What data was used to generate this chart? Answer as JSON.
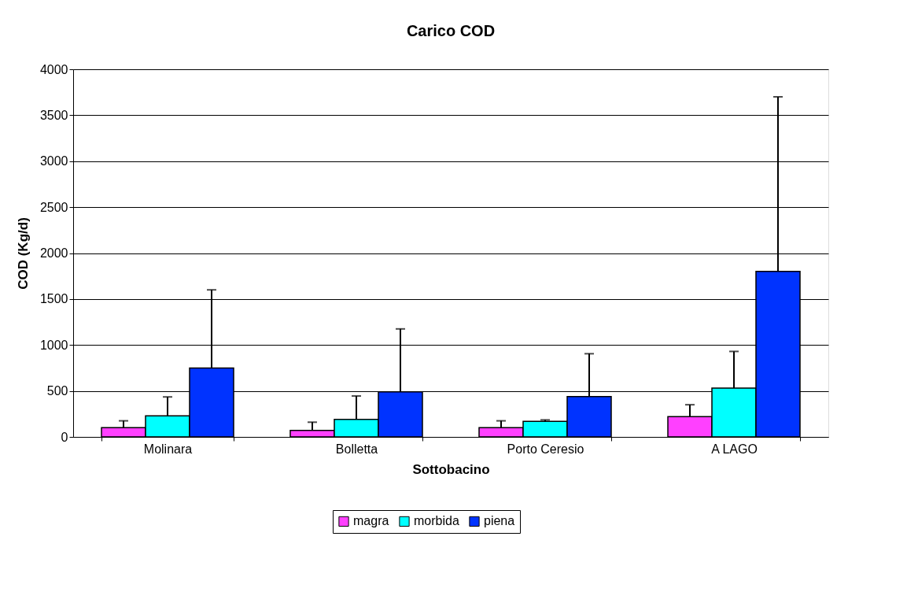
{
  "chart_data": {
    "type": "bar",
    "title": "Carico COD",
    "xlabel": "Sottobacino",
    "ylabel": "COD (Kg/d)",
    "categories": [
      "Molinara",
      "Bolletta",
      "Porto Ceresio",
      "A LAGO"
    ],
    "series": [
      {
        "name": "magra",
        "color": "#ff40ff",
        "values": [
          100,
          70,
          100,
          220
        ],
        "errors": [
          [
            100,
            175
          ],
          [
            70,
            160
          ],
          [
            100,
            175
          ],
          [
            220,
            350
          ]
        ]
      },
      {
        "name": "morbida",
        "color": "#00ffff",
        "values": [
          230,
          190,
          170,
          530
        ],
        "errors": [
          [
            230,
            435
          ],
          [
            190,
            445
          ],
          [
            170,
            185
          ],
          [
            530,
            930
          ]
        ]
      },
      {
        "name": "piena",
        "color": "#0033ff",
        "values": [
          750,
          490,
          440,
          1800
        ],
        "errors": [
          [
            750,
            1600
          ],
          [
            490,
            1175
          ],
          [
            440,
            905
          ],
          [
            1800,
            3700
          ]
        ]
      }
    ],
    "ylim": [
      0,
      4000
    ],
    "yticks": [
      0,
      500,
      1000,
      1500,
      2000,
      2500,
      3000,
      3500,
      4000
    ],
    "grid": "y",
    "legend": "bottom"
  }
}
